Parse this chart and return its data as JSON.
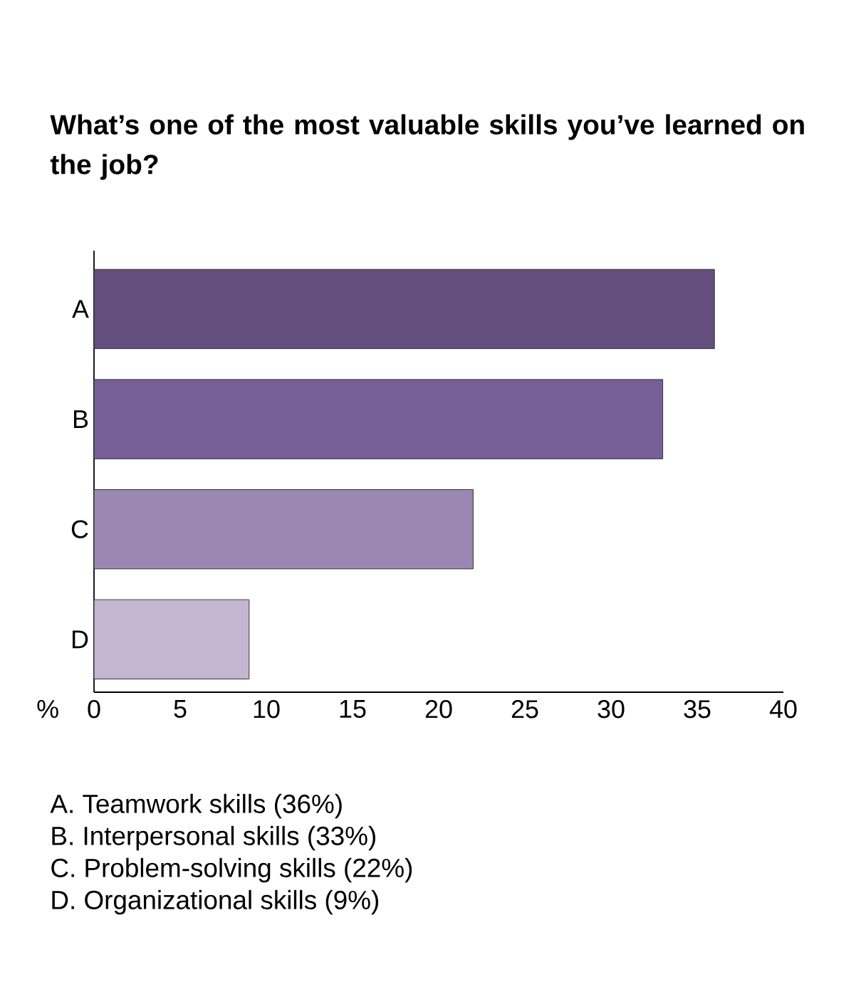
{
  "chart_data": {
    "type": "bar",
    "orientation": "horizontal",
    "title": "What’s one of the most valuable skills you’ve learned on the job?",
    "xlabel": "%",
    "categories": [
      "A",
      "B",
      "C",
      "D"
    ],
    "values": [
      36,
      33,
      22,
      9
    ],
    "colors": [
      "#634e7e",
      "#765f96",
      "#9a88b2",
      "#c4b6d0"
    ],
    "xlim": [
      0,
      40
    ],
    "xticks": [
      0,
      5,
      10,
      15,
      20,
      25,
      30,
      35,
      40
    ],
    "annotations": [
      "A.  Teamwork skills (36%)",
      "B.  Interpersonal skills (33%)",
      "C.  Problem-solving skills (22%)",
      "D.  Organizational skills (9%)"
    ]
  }
}
